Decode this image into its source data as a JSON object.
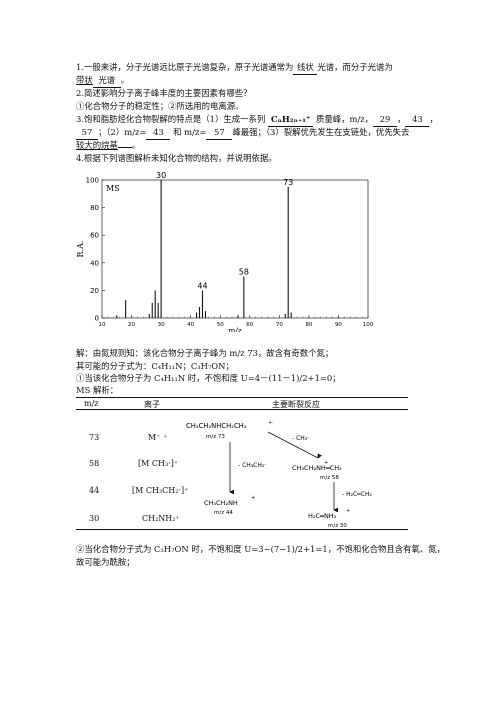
{
  "q1": {
    "prefix": "1.一般来讲，分子光谱远比原子光谱复杂，原子光谱通常为",
    "blank1": "线状",
    "mid": "光谱，而分子光谱为",
    "blank2_pre": "带状",
    "blank2": "光谱",
    "end": "。"
  },
  "q2": {
    "question": "2.简述影响分子离子峰丰度的主要因素有哪些？",
    "answer": "①化合物分子的稳定性；②所选用的电离源。"
  },
  "q3": {
    "line1_pre": "3.饱和脂肪烃化合物裂解的特点是（1）生成一系列",
    "formula": "CₙH₂ₙ₊₁⁺",
    "line1_mid": "质量峰，m/z，",
    "b29": "29",
    "b43": "43",
    "b57": "57",
    "line2_a": "；（2）m/z=",
    "line2_b": "和 m/z=",
    "line2_c": "峰最强；（3）裂解优先发生在支链处，优先失去",
    "line3": "较大的烷基",
    "line3_end": "。"
  },
  "q4": {
    "question": "4.根据下列谱图解析未知化合物的结构，并说明依据。"
  },
  "chart_data": {
    "type": "bar",
    "title": "MS",
    "xlabel": "m/z",
    "ylabel": "R.A.",
    "xlim": [
      10,
      100
    ],
    "ylim": [
      0,
      100
    ],
    "xticks": [
      "10",
      "20",
      "30",
      "40",
      "50",
      "60",
      "70",
      "80",
      "90",
      "100"
    ],
    "yticks": [
      "0",
      "20",
      "40",
      "60",
      "80",
      "100"
    ],
    "points": [
      {
        "x": 15,
        "y": 2
      },
      {
        "x": 18,
        "y": 13
      },
      {
        "x": 26,
        "y": 3
      },
      {
        "x": 27,
        "y": 11
      },
      {
        "x": 28,
        "y": 20
      },
      {
        "x": 29,
        "y": 11
      },
      {
        "x": 30,
        "y": 100
      },
      {
        "x": 42,
        "y": 4
      },
      {
        "x": 43,
        "y": 8
      },
      {
        "x": 44,
        "y": 20
      },
      {
        "x": 45,
        "y": 5
      },
      {
        "x": 56,
        "y": 2
      },
      {
        "x": 58,
        "y": 30
      },
      {
        "x": 72,
        "y": 3
      },
      {
        "x": 73,
        "y": 95
      },
      {
        "x": 74,
        "y": 4
      }
    ],
    "peak_labels": [
      {
        "x": 30,
        "y": 100,
        "label": "30"
      },
      {
        "x": 44,
        "y": 20,
        "label": "44"
      },
      {
        "x": 58,
        "y": 30,
        "label": "58"
      },
      {
        "x": 73,
        "y": 95,
        "label": "73"
      }
    ]
  },
  "solution": {
    "line1": "解：由氮规则知：该化合物分子离子峰为 m/z 73，故含有奇数个氮；",
    "line2": "其可能的分子式为：C₄H₁₁N；C₃H₇ON；",
    "line3": "①当该化合物分子为 C₄H₁₁N 时，不饱和度 U=4－(11－1)/2+1=0；",
    "line4": "MS 解析：",
    "table": {
      "headers": [
        "m/z",
        "离子",
        "主要断裂反应"
      ],
      "rows": [
        {
          "mz": "73",
          "ion": "M⁻ ⁺"
        },
        {
          "mz": "58",
          "ion": "[M CH₃·]⁺"
        },
        {
          "mz": "44",
          "ion": "[M CH₃CH₂·]⁺"
        },
        {
          "mz": "30",
          "ion": "CH₂NH₂⁺"
        }
      ]
    },
    "scheme": {
      "parent": "CH₃CH₂NHCH₂CH₃",
      "parent_charge": "+·",
      "parent_mz": "m/z  73",
      "loss1": "- CH₃·",
      "loss2": "- CH₃CH₂·",
      "frag58": "CH₃CH₂NH═CH₂",
      "frag58_charge": "+",
      "frag58_mz": "m/z  58",
      "frag44": "CH₃CH₂NH",
      "frag44_charge": "+",
      "frag44_mz": "m/z  44",
      "loss3": "- H₂C═CH₂",
      "frag30": "H₂C═NH₂",
      "frag30_charge": "+",
      "frag30_mz": "m/z  30"
    },
    "line5": "②当化合物分子式为 C₃H₇ON 时，不饱和度 U=3−(7−1)/2+1=1，不饱和化合物且含有氧、氮，",
    "line6": "故可能为酰胺；"
  }
}
